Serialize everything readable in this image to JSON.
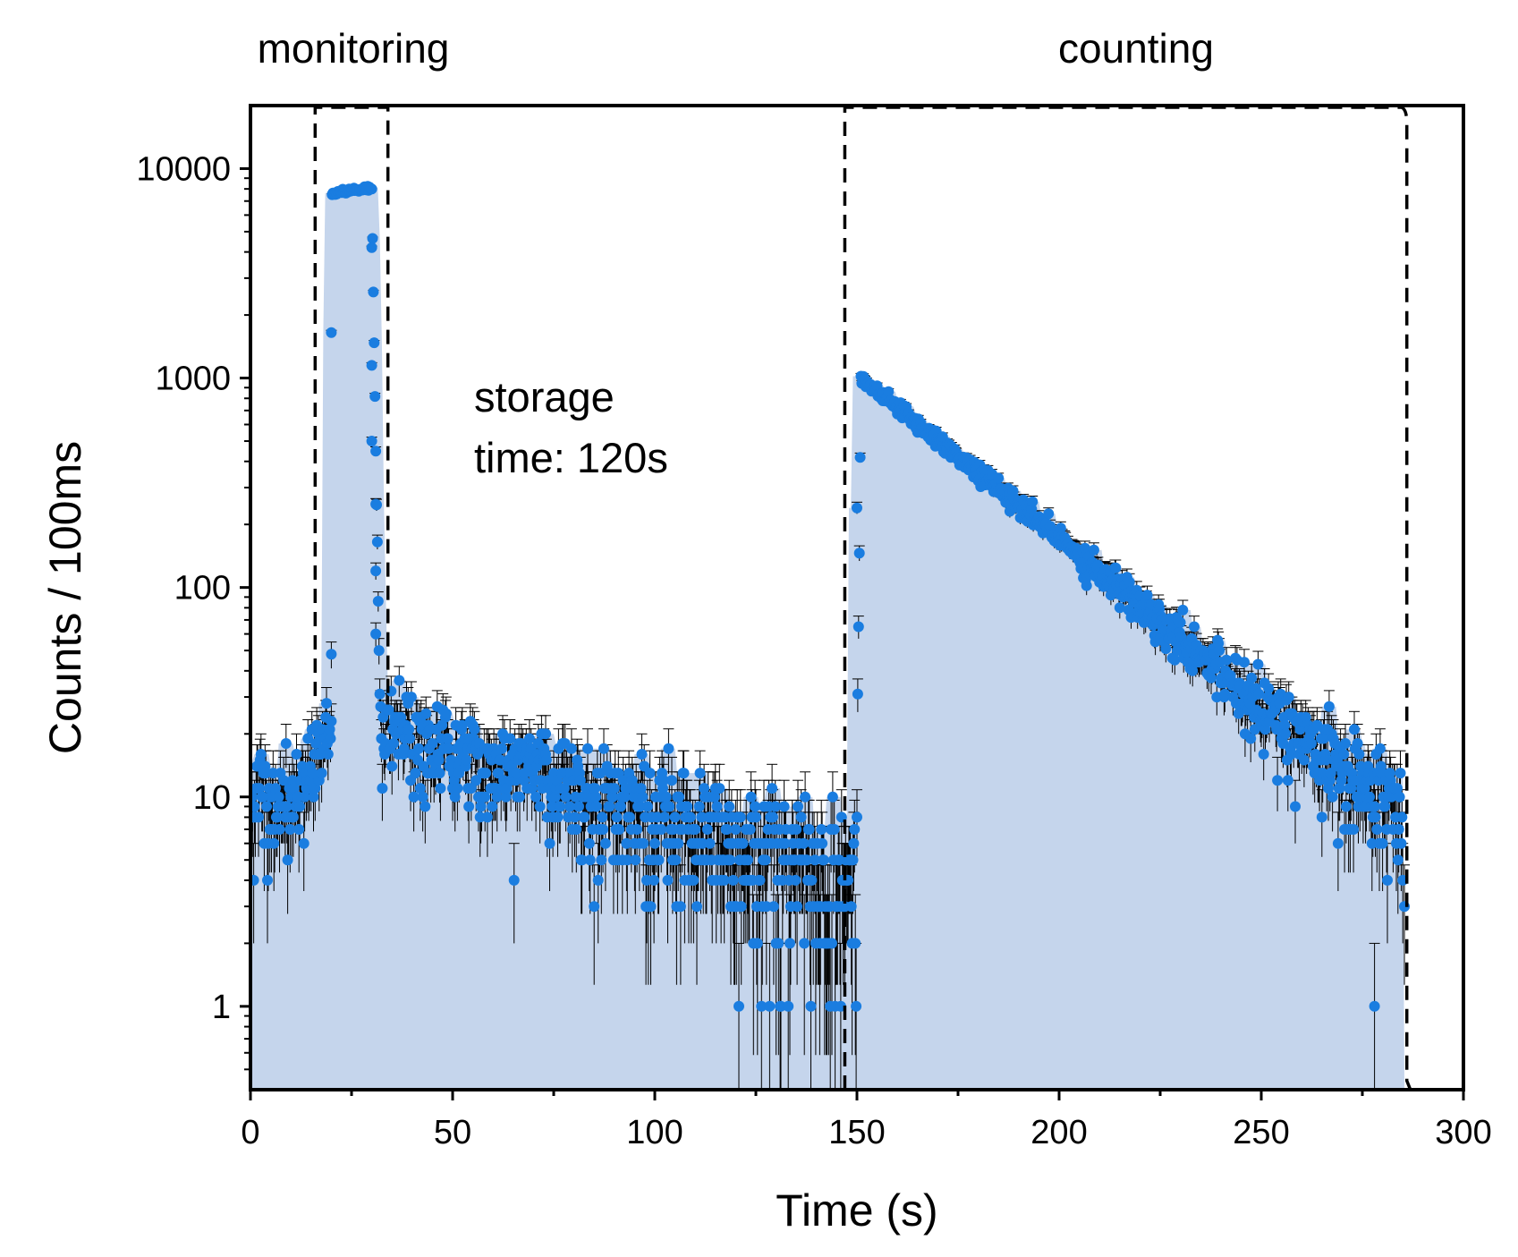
{
  "chart_data": {
    "type": "scatter",
    "title": "",
    "xlabel": "Time (s)",
    "ylabel": "Counts / 100ms",
    "xlim": [
      0,
      300
    ],
    "ylim": [
      0.4,
      20000
    ],
    "yscale": "log",
    "xticks": [
      0,
      50,
      100,
      150,
      200,
      250,
      300
    ],
    "xtick_labels": [
      "0",
      "50",
      "100",
      "150",
      "200",
      "250",
      "300"
    ],
    "yticks": [
      1,
      10,
      100,
      1000,
      10000
    ],
    "ytick_labels": [
      "1",
      "10",
      "100",
      "1000",
      "10000"
    ],
    "grid": false,
    "legend": null,
    "colors": {
      "points": "#1a7de0",
      "errorbars": "#000000",
      "fill": "#c5d5ec",
      "guides": "#000000"
    },
    "regions": [
      {
        "label": "monitoring",
        "start": 16,
        "end": 34
      },
      {
        "label": "counting",
        "start": 147,
        "end": 286
      }
    ],
    "annotation": {
      "line1": "storage",
      "line2": "time: 120s"
    },
    "series": [
      {
        "name": "Counts per 100 ms",
        "bin_width_s": 0.1,
        "segments": [
          {
            "phase": "background",
            "x_start": 0,
            "x_end": 12,
            "y_start": 9,
            "y_end": 9
          },
          {
            "phase": "filling rise",
            "x_start": 12,
            "x_end": 20,
            "y_start": 9,
            "y_end": 24
          },
          {
            "phase": "monitoring plateau",
            "x_start": 20,
            "x_end": 30,
            "y_start": 7600,
            "y_end": 8100
          },
          {
            "phase": "emptying drop",
            "x_start": 30,
            "x_end": 32,
            "y_start": 8100,
            "y_end": 25
          },
          {
            "phase": "storage background decay",
            "x_start": 32,
            "x_end": 150,
            "y_start": 22,
            "y_end": 4
          },
          {
            "phase": "counting peak",
            "x_start": 150,
            "x_end": 151,
            "y_start": 11,
            "y_end": 1050
          },
          {
            "phase": "counting exponential decay",
            "x_start": 151,
            "x_end": 285,
            "y_start": 1000,
            "y_end": 8
          }
        ],
        "notable_points": [
          {
            "x": 20,
            "y": 1650
          },
          {
            "x": 20,
            "y": 48
          },
          {
            "x": 30,
            "y": 4200
          },
          {
            "x": 30,
            "y": 1150
          },
          {
            "x": 30,
            "y": 500
          },
          {
            "x": 31,
            "y": 250
          },
          {
            "x": 31,
            "y": 120
          },
          {
            "x": 31,
            "y": 60
          },
          {
            "x": 73,
            "y": 20
          },
          {
            "x": 150,
            "y": 240
          },
          {
            "x": 278,
            "y": 1
          }
        ]
      }
    ]
  }
}
